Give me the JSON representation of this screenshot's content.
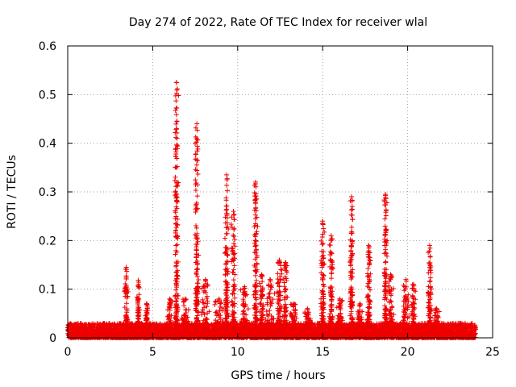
{
  "chart_data": {
    "type": "scatter",
    "title": "Day 274 of 2022, Rate Of TEC Index for receiver wlal",
    "xlabel": "GPS time / hours",
    "ylabel": "ROTI / TECUs",
    "xlim": [
      0,
      25
    ],
    "ylim": [
      0,
      0.6
    ],
    "xticks": [
      0,
      5,
      10,
      15,
      20,
      25
    ],
    "xtick_labels": [
      "0",
      "5",
      "10",
      "15",
      "20",
      "25"
    ],
    "yticks": [
      0,
      0.1,
      0.2,
      0.3,
      0.4,
      0.5,
      0.6
    ],
    "ytick_labels": [
      "0",
      "0.1",
      "0.2",
      "0.3",
      "0.4",
      "0.5",
      "0.6"
    ],
    "grid": true,
    "marker": "plus",
    "color": "#ee0000",
    "data_extent_hours": [
      0,
      24
    ],
    "bursts": [
      {
        "t": 3.45,
        "peak": 0.145,
        "width": 0.12
      },
      {
        "t": 4.15,
        "peak": 0.118,
        "width": 0.1
      },
      {
        "t": 4.65,
        "peak": 0.07,
        "width": 0.1
      },
      {
        "t": 6.0,
        "peak": 0.08,
        "width": 0.15
      },
      {
        "t": 6.4,
        "peak": 0.525,
        "width": 0.12
      },
      {
        "t": 6.9,
        "peak": 0.08,
        "width": 0.25
      },
      {
        "t": 7.6,
        "peak": 0.44,
        "width": 0.12
      },
      {
        "t": 8.1,
        "peak": 0.12,
        "width": 0.25
      },
      {
        "t": 8.9,
        "peak": 0.08,
        "width": 0.3
      },
      {
        "t": 9.35,
        "peak": 0.335,
        "width": 0.12
      },
      {
        "t": 9.75,
        "peak": 0.26,
        "width": 0.15
      },
      {
        "t": 10.4,
        "peak": 0.105,
        "width": 0.25
      },
      {
        "t": 11.05,
        "peak": 0.32,
        "width": 0.12
      },
      {
        "t": 11.4,
        "peak": 0.13,
        "width": 0.15
      },
      {
        "t": 11.9,
        "peak": 0.12,
        "width": 0.3
      },
      {
        "t": 12.45,
        "peak": 0.16,
        "width": 0.2
      },
      {
        "t": 12.8,
        "peak": 0.155,
        "width": 0.15
      },
      {
        "t": 13.3,
        "peak": 0.07,
        "width": 0.25
      },
      {
        "t": 14.1,
        "peak": 0.06,
        "width": 0.25
      },
      {
        "t": 15.0,
        "peak": 0.24,
        "width": 0.12
      },
      {
        "t": 15.5,
        "peak": 0.21,
        "width": 0.12
      },
      {
        "t": 16.0,
        "peak": 0.08,
        "width": 0.25
      },
      {
        "t": 16.7,
        "peak": 0.29,
        "width": 0.12
      },
      {
        "t": 17.2,
        "peak": 0.07,
        "width": 0.2
      },
      {
        "t": 17.7,
        "peak": 0.19,
        "width": 0.15
      },
      {
        "t": 18.7,
        "peak": 0.295,
        "width": 0.12
      },
      {
        "t": 19.0,
        "peak": 0.13,
        "width": 0.2
      },
      {
        "t": 19.9,
        "peak": 0.12,
        "width": 0.2
      },
      {
        "t": 20.35,
        "peak": 0.11,
        "width": 0.15
      },
      {
        "t": 21.3,
        "peak": 0.19,
        "width": 0.12
      },
      {
        "t": 21.7,
        "peak": 0.06,
        "width": 0.2
      },
      {
        "t": 23.1,
        "peak": 0.03,
        "width": 0.15
      }
    ],
    "baseline_roti": [
      0.0,
      0.03
    ]
  }
}
